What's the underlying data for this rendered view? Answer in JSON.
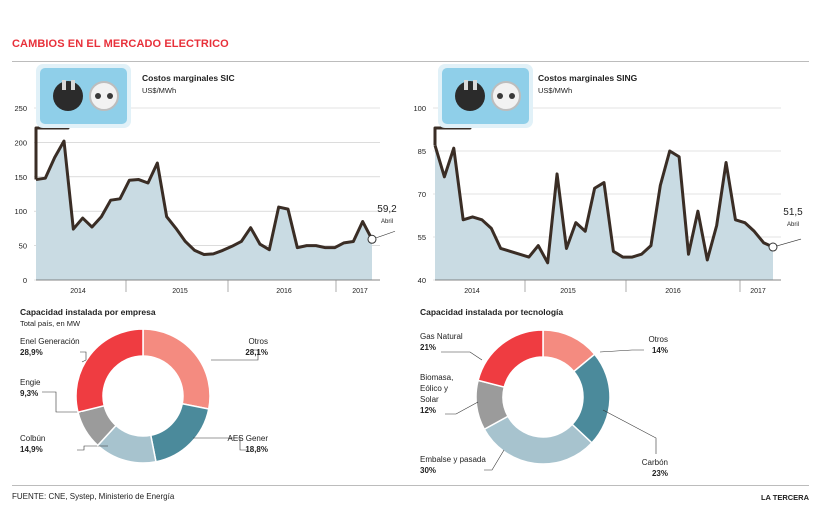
{
  "title": "CAMBIOS EN EL MERCADO ELECTRICO",
  "footer": {
    "source": "FUENTE: CNE, Systep, Ministerio de Energía",
    "brand": "LA TERCERA"
  },
  "colors": {
    "accent": "#e8303a",
    "area": "#c9dbe3",
    "line": "#3a2d25",
    "plug_box": "#8fcfe9"
  },
  "icons": [
    "plug-socket-icon",
    "plug-socket-icon"
  ],
  "chart_data": [
    {
      "type": "area",
      "title": "Costos marginales SIC",
      "subtitle": "US$/MWh",
      "xlabel": "",
      "ylabel": "",
      "x_tick_labels": [
        "2014",
        "2015",
        "2016",
        "2017"
      ],
      "ylim": [
        0,
        250
      ],
      "yticks": [
        0,
        50,
        100,
        150,
        200,
        250
      ],
      "grid": true,
      "start": "2013-08",
      "values": [
        146,
        148,
        178,
        202,
        74,
        90,
        77,
        92,
        116,
        118,
        145,
        146,
        141,
        170,
        92,
        75,
        56,
        43,
        37,
        38,
        43,
        49,
        56,
        76,
        52,
        44,
        106,
        103,
        47,
        50,
        50,
        47,
        47,
        54,
        56,
        85,
        59.2
      ],
      "final_label": {
        "value": "59,2",
        "month": "Abril"
      }
    },
    {
      "type": "area",
      "title": "Costos marginales SING",
      "subtitle": "US$/MWh",
      "xlabel": "",
      "ylabel": "",
      "x_tick_labels": [
        "2014",
        "2015",
        "2016",
        "2017"
      ],
      "ylim": [
        40,
        100
      ],
      "yticks": [
        40,
        55,
        70,
        85,
        100
      ],
      "grid": true,
      "start": "2013-08",
      "values": [
        87,
        76,
        86,
        61,
        62,
        61,
        58,
        51,
        50,
        49,
        48,
        52,
        46,
        77,
        51,
        60,
        57,
        72,
        74,
        50,
        48,
        48,
        49,
        52,
        73,
        85,
        83,
        49,
        64,
        47,
        59,
        81,
        61,
        60,
        57,
        53,
        51.5
      ],
      "final_label": {
        "value": "51,5",
        "month": "Abril"
      }
    },
    {
      "type": "pie",
      "title": "Capacidad instalada por empresa",
      "subtitle": "Total país, en MW",
      "slices": [
        {
          "name": "Otros",
          "label": "28,1%",
          "value": 28.1,
          "color": "#f48b80"
        },
        {
          "name": "AES Gener",
          "label": "18,8%",
          "value": 18.8,
          "color": "#4b8a9b"
        },
        {
          "name": "Colbún",
          "label": "14,9%",
          "value": 14.9,
          "color": "#a7c3ce"
        },
        {
          "name": "Engie",
          "label": "9,3%",
          "value": 9.3,
          "color": "#9b9b9b"
        },
        {
          "name": "Enel Generación",
          "label": "28,9%",
          "value": 28.9,
          "color": "#ef3c41"
        }
      ]
    },
    {
      "type": "pie",
      "title": "Capacidad instalada por tecnología",
      "subtitle": "",
      "slices": [
        {
          "name": "Otros",
          "label": "14%",
          "value": 14,
          "color": "#f48b80"
        },
        {
          "name": "Carbón",
          "label": "23%",
          "value": 23,
          "color": "#4b8a9b"
        },
        {
          "name": "Embalse y pasada",
          "label": "30%",
          "value": 30,
          "color": "#a7c3ce"
        },
        {
          "name": "Biomasa, Eólico y Solar",
          "label": "12%",
          "value": 12,
          "color": "#9b9b9b"
        },
        {
          "name": "Gas Natural",
          "label": "21%",
          "value": 21,
          "color": "#ef3c41"
        }
      ]
    }
  ]
}
